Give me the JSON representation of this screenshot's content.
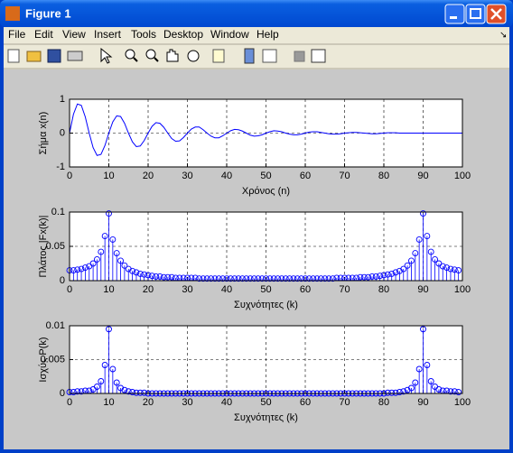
{
  "window": {
    "title": "Figure 1",
    "menu": [
      "File",
      "Edit",
      "View",
      "Insert",
      "Tools",
      "Desktop",
      "Window",
      "Help"
    ]
  },
  "chart_data": [
    {
      "type": "line",
      "xlabel": "Χρόνος (n)",
      "ylabel": "Σήμα x(n)",
      "color": "#0000ff",
      "grid": true,
      "xlim": [
        0,
        100
      ],
      "ylim": [
        -1,
        1
      ],
      "xticks": [
        0,
        10,
        20,
        30,
        40,
        50,
        60,
        70,
        80,
        90,
        100
      ],
      "yticks": [
        -1,
        0,
        1
      ],
      "x": [
        0,
        1,
        2,
        3,
        4,
        5,
        6,
        7,
        8,
        9,
        10,
        11,
        12,
        13,
        14,
        15,
        16,
        17,
        18,
        19,
        20,
        21,
        22,
        23,
        24,
        25,
        26,
        27,
        28,
        29,
        30,
        31,
        32,
        33,
        34,
        35,
        36,
        37,
        38,
        39,
        40,
        41,
        42,
        43,
        44,
        45,
        46,
        47,
        48,
        49,
        50,
        51,
        52,
        53,
        54,
        55,
        56,
        57,
        58,
        59,
        60,
        61,
        62,
        63,
        64,
        65,
        66,
        67,
        68,
        69,
        70,
        71,
        72,
        73,
        74,
        75,
        76,
        77,
        78,
        79,
        80,
        81,
        82,
        83,
        84,
        85,
        86,
        87,
        88,
        89,
        90,
        91,
        92,
        93,
        94,
        95,
        96,
        97,
        98,
        99,
        100
      ],
      "values": [
        0,
        0.56,
        0.86,
        0.82,
        0.48,
        0,
        -0.43,
        -0.66,
        -0.63,
        -0.37,
        0,
        0.33,
        0.51,
        0.49,
        0.29,
        0,
        -0.26,
        -0.4,
        -0.38,
        -0.22,
        0,
        0.2,
        0.31,
        0.29,
        0.17,
        0,
        -0.16,
        -0.24,
        -0.23,
        -0.13,
        0,
        0.12,
        0.18,
        0.18,
        0.1,
        0,
        -0.09,
        -0.14,
        -0.14,
        -0.08,
        0,
        0.07,
        0.11,
        0.1,
        0.06,
        0,
        -0.06,
        -0.09,
        -0.08,
        -0.05,
        0,
        0.04,
        0.07,
        0.06,
        0.04,
        0,
        -0.03,
        -0.05,
        -0.05,
        -0.03,
        0,
        0.03,
        0.04,
        0.04,
        0.02,
        0,
        -0.02,
        -0.03,
        -0.03,
        -0.02,
        0,
        0.01,
        0.02,
        0.02,
        0.01,
        0,
        -0.01,
        -0.02,
        -0.02,
        -0.01,
        0,
        0.01,
        0.01,
        0.01,
        0,
        0,
        0,
        0,
        0,
        0,
        0,
        0,
        0,
        0,
        0,
        0,
        0,
        0,
        0,
        0,
        0
      ]
    },
    {
      "type": "stem",
      "xlabel": "Συχνότητες (k)",
      "ylabel": "Πλάτος |Fx(k)|",
      "color": "#0000ff",
      "grid": true,
      "xlim": [
        0,
        100
      ],
      "ylim": [
        0,
        0.1
      ],
      "xticks": [
        0,
        10,
        20,
        30,
        40,
        50,
        60,
        70,
        80,
        90,
        100
      ],
      "yticks": [
        0,
        0.05,
        0.1
      ],
      "x": [
        0,
        1,
        2,
        3,
        4,
        5,
        6,
        7,
        8,
        9,
        10,
        11,
        12,
        13,
        14,
        15,
        16,
        17,
        18,
        19,
        20,
        21,
        22,
        23,
        24,
        25,
        26,
        27,
        28,
        29,
        30,
        31,
        32,
        33,
        34,
        35,
        36,
        37,
        38,
        39,
        40,
        41,
        42,
        43,
        44,
        45,
        46,
        47,
        48,
        49,
        50,
        51,
        52,
        53,
        54,
        55,
        56,
        57,
        58,
        59,
        60,
        61,
        62,
        63,
        64,
        65,
        66,
        67,
        68,
        69,
        70,
        71,
        72,
        73,
        74,
        75,
        76,
        77,
        78,
        79,
        80,
        81,
        82,
        83,
        84,
        85,
        86,
        87,
        88,
        89,
        90,
        91,
        92,
        93,
        94,
        95,
        96,
        97,
        98,
        99
      ],
      "values": [
        0.015,
        0.015,
        0.016,
        0.017,
        0.019,
        0.021,
        0.025,
        0.031,
        0.042,
        0.065,
        0.098,
        0.06,
        0.04,
        0.029,
        0.022,
        0.017,
        0.014,
        0.012,
        0.01,
        0.009,
        0.008,
        0.007,
        0.006,
        0.006,
        0.005,
        0.005,
        0.005,
        0.004,
        0.004,
        0.004,
        0.004,
        0.004,
        0.004,
        0.003,
        0.003,
        0.003,
        0.003,
        0.003,
        0.003,
        0.003,
        0.003,
        0.003,
        0.003,
        0.003,
        0.003,
        0.003,
        0.003,
        0.003,
        0.003,
        0.003,
        0.003,
        0.003,
        0.003,
        0.003,
        0.003,
        0.003,
        0.003,
        0.003,
        0.003,
        0.003,
        0.003,
        0.003,
        0.003,
        0.003,
        0.003,
        0.003,
        0.003,
        0.003,
        0.004,
        0.004,
        0.004,
        0.004,
        0.004,
        0.004,
        0.005,
        0.005,
        0.005,
        0.006,
        0.006,
        0.007,
        0.008,
        0.009,
        0.01,
        0.012,
        0.014,
        0.017,
        0.022,
        0.029,
        0.04,
        0.06,
        0.098,
        0.065,
        0.042,
        0.031,
        0.025,
        0.021,
        0.019,
        0.017,
        0.016,
        0.015
      ]
    },
    {
      "type": "stem",
      "xlabel": "Συχνότητες (k)",
      "ylabel": "Ισχύς P(k)",
      "color": "#0000ff",
      "grid": true,
      "xlim": [
        0,
        100
      ],
      "ylim": [
        0,
        0.01
      ],
      "xticks": [
        0,
        10,
        20,
        30,
        40,
        50,
        60,
        70,
        80,
        90,
        100
      ],
      "yticks": [
        0,
        0.005,
        0.01
      ],
      "x": [
        0,
        1,
        2,
        3,
        4,
        5,
        6,
        7,
        8,
        9,
        10,
        11,
        12,
        13,
        14,
        15,
        16,
        17,
        18,
        19,
        20,
        21,
        22,
        23,
        24,
        25,
        26,
        27,
        28,
        29,
        30,
        31,
        32,
        33,
        34,
        35,
        36,
        37,
        38,
        39,
        40,
        41,
        42,
        43,
        44,
        45,
        46,
        47,
        48,
        49,
        50,
        51,
        52,
        53,
        54,
        55,
        56,
        57,
        58,
        59,
        60,
        61,
        62,
        63,
        64,
        65,
        66,
        67,
        68,
        69,
        70,
        71,
        72,
        73,
        74,
        75,
        76,
        77,
        78,
        79,
        80,
        81,
        82,
        83,
        84,
        85,
        86,
        87,
        88,
        89,
        90,
        91,
        92,
        93,
        94,
        95,
        96,
        97,
        98,
        99
      ],
      "values": [
        0.0002,
        0.0002,
        0.0003,
        0.0003,
        0.0004,
        0.0004,
        0.0006,
        0.001,
        0.0018,
        0.0042,
        0.0095,
        0.0036,
        0.0016,
        0.0008,
        0.0005,
        0.0003,
        0.0002,
        0.0001,
        0.0001,
        0.0001,
        0,
        0,
        0,
        0,
        0,
        0,
        0,
        0,
        0,
        0,
        0,
        0,
        0,
        0,
        0,
        0,
        0,
        0,
        0,
        0,
        0,
        0,
        0,
        0,
        0,
        0,
        0,
        0,
        0,
        0,
        0,
        0,
        0,
        0,
        0,
        0,
        0,
        0,
        0,
        0,
        0,
        0,
        0,
        0,
        0,
        0,
        0,
        0,
        0,
        0,
        0,
        0,
        0,
        0,
        0,
        0,
        0,
        0,
        0,
        0,
        0,
        0.0001,
        0.0001,
        0.0001,
        0.0002,
        0.0003,
        0.0005,
        0.0008,
        0.0016,
        0.0036,
        0.0095,
        0.0042,
        0.0018,
        0.001,
        0.0006,
        0.0004,
        0.0004,
        0.0003,
        0.0003,
        0.0002
      ]
    }
  ]
}
